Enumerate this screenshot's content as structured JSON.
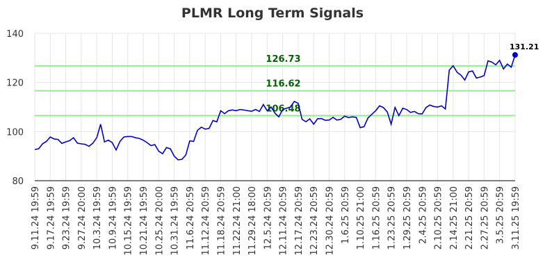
{
  "chart_data": {
    "type": "line",
    "title": "PLMR Long Term Signals",
    "categories": [
      "9.11.24 19:59",
      null,
      null,
      null,
      "9.17.24 19:59",
      null,
      null,
      null,
      "9.23.24 19:59",
      null,
      null,
      null,
      "9.27.24 20:00",
      null,
      null,
      null,
      "10.3.24 19:59",
      null,
      null,
      null,
      "10.9.24 19:59",
      null,
      null,
      null,
      "10.15.24 19:59",
      null,
      null,
      null,
      "10.21.24 19:59",
      null,
      null,
      null,
      "10.25.24 20:00",
      null,
      null,
      null,
      "10.31.24 19:59",
      null,
      null,
      null,
      "11.6.24 20:59",
      null,
      null,
      null,
      "11.12.24 20:59",
      null,
      null,
      null,
      "11.18.24 20:59",
      null,
      null,
      null,
      "11.22.24 21:00",
      null,
      null,
      null,
      "11.29.24 18:00",
      null,
      null,
      null,
      "12.5.24 20:59",
      null,
      null,
      null,
      "12.11.24 20:59",
      null,
      null,
      null,
      "12.17.24 20:59",
      null,
      null,
      null,
      "12.23.24 20:59",
      null,
      null,
      null,
      "12.30.24 20:59",
      null,
      null,
      null,
      "1.6.25 20:59",
      null,
      null,
      null,
      "1.10.25 21:00",
      null,
      null,
      null,
      "1.16.25 20:59",
      null,
      null,
      null,
      "1.23.25 20:59",
      null,
      null,
      null,
      "1.29.25 20:59",
      null,
      null,
      null,
      "2.4.25 20:59",
      null,
      null,
      null,
      "2.10.25 20:59",
      null,
      null,
      null,
      "2.14.25 21:00",
      null,
      null,
      null,
      "2.21.25 20:59",
      null,
      null,
      null,
      "2.27.25 20:59",
      null,
      null,
      null,
      "3.5.25 20:59",
      null,
      null,
      null,
      "3.11.25 19:59"
    ],
    "values": [
      92.7,
      93,
      95,
      96,
      97.8,
      97,
      96.8,
      95.2,
      95.8,
      96.3,
      97.5,
      95.3,
      95,
      94.8,
      94,
      95.3,
      97.5,
      103,
      95.8,
      96.5,
      95.5,
      92.5,
      96,
      97.8,
      98,
      98,
      97.5,
      97.2,
      96.5,
      95.5,
      94.3,
      94.7,
      92,
      91,
      93.5,
      93,
      90,
      88.5,
      88.7,
      90.5,
      96.2,
      96,
      100.5,
      101.8,
      101,
      101.3,
      104.5,
      104,
      108.5,
      107.3,
      108.5,
      108.8,
      108.5,
      109,
      108.8,
      108.5,
      108.3,
      109,
      108.2,
      111,
      108.5,
      110,
      107.5,
      106,
      109,
      109.5,
      110,
      112.3,
      111.5,
      105,
      104,
      105.2,
      103,
      105.2,
      105.3,
      104.6,
      104.7,
      105.8,
      104.7,
      105,
      106.3,
      105.7,
      106,
      105.8,
      101.6,
      102,
      105.5,
      107,
      108.5,
      110.5,
      109.8,
      108,
      103,
      109.8,
      106.5,
      109.5,
      109,
      107.8,
      108.2,
      107.3,
      107.2,
      109.8,
      110.8,
      110.2,
      110,
      110.5,
      109.2,
      125,
      126.8,
      124.2,
      123,
      121,
      124.3,
      124.7,
      121.8,
      122.2,
      122.8,
      128.8,
      128.3,
      127.2,
      129,
      125.5,
      127.5,
      126.2,
      131.21
    ],
    "color": "#0000cc",
    "reference_lines": [
      {
        "value": 126.73,
        "color": "#90ee90",
        "label_color": "#006400"
      },
      {
        "value": 116.62,
        "color": "#90ee90",
        "label_color": "#006400"
      },
      {
        "value": 106.48,
        "color": "#90ee90",
        "label_color": "#006400"
      }
    ],
    "ylim": [
      80,
      140
    ],
    "yticks": [
      80,
      100,
      120,
      140
    ],
    "grid": true
  }
}
